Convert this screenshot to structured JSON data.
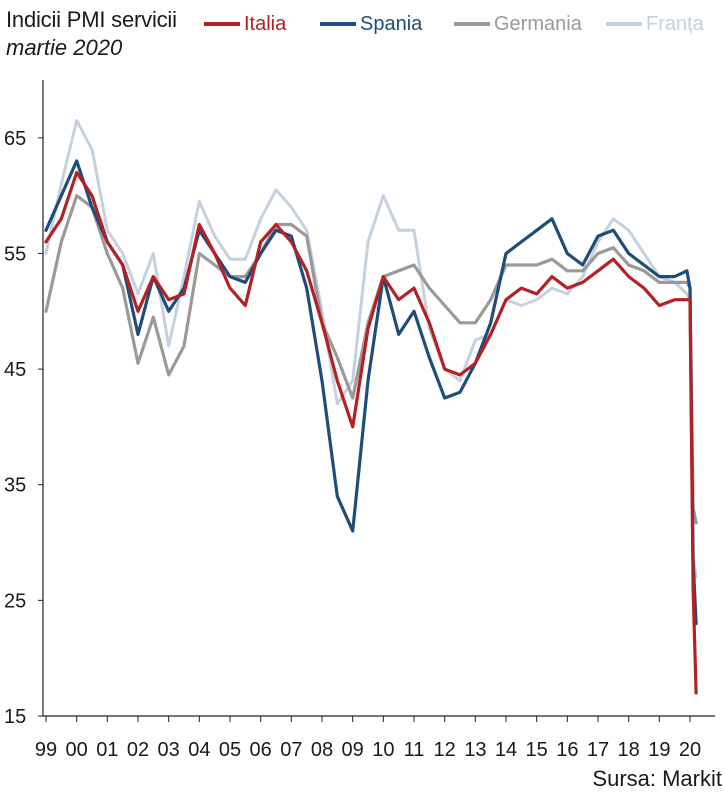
{
  "chart_data": {
    "type": "line",
    "title": "Indicii PMI servicii",
    "subtitle": "martie 2020",
    "source": "Sursa: Markit",
    "xlabel": "",
    "ylabel": "",
    "x_tick_labels": [
      "99",
      "00",
      "01",
      "02",
      "03",
      "04",
      "05",
      "06",
      "07",
      "08",
      "09",
      "10",
      "11",
      "12",
      "13",
      "14",
      "15",
      "16",
      "17",
      "18",
      "19",
      "20"
    ],
    "y_ticks": [
      15,
      25,
      35,
      45,
      55,
      65
    ],
    "y_tick_labels": [
      "15",
      "25",
      "35",
      "45",
      "55",
      "65"
    ],
    "xlim": [
      1999,
      2020.5
    ],
    "ylim": [
      15,
      70
    ],
    "grid": false,
    "legend_position": "top",
    "x": [
      1999.0,
      1999.5,
      2000.0,
      2000.5,
      2001.0,
      2001.5,
      2002.0,
      2002.5,
      2003.0,
      2003.5,
      2004.0,
      2004.5,
      2005.0,
      2005.5,
      2006.0,
      2006.5,
      2007.0,
      2007.5,
      2008.0,
      2008.5,
      2009.0,
      2009.5,
      2010.0,
      2010.5,
      2011.0,
      2011.5,
      2012.0,
      2012.5,
      2013.0,
      2013.5,
      2014.0,
      2014.5,
      2015.0,
      2015.5,
      2016.0,
      2016.5,
      2017.0,
      2017.5,
      2018.0,
      2018.5,
      2019.0,
      2019.5,
      2019.9,
      2020.0,
      2020.1,
      2020.2
    ],
    "series": [
      {
        "name": "Italia",
        "color": "#b32125",
        "values": [
          56.0,
          58.0,
          62.0,
          60.0,
          56.0,
          54.0,
          50.0,
          53.0,
          51.0,
          51.5,
          57.5,
          55.0,
          52.0,
          50.5,
          56.0,
          57.5,
          56.0,
          53.5,
          49.0,
          44.0,
          40.0,
          48.5,
          53.0,
          51.0,
          52.0,
          49.0,
          45.0,
          44.5,
          45.5,
          48.0,
          51.0,
          52.0,
          51.5,
          53.0,
          52.0,
          52.5,
          53.5,
          54.5,
          53.0,
          52.0,
          50.5,
          51.0,
          51.0,
          51.0,
          26.0,
          17.0
        ]
      },
      {
        "name": "Spania",
        "color": "#1f4d7a",
        "values": [
          57.0,
          60.0,
          63.0,
          59.0,
          56.0,
          54.0,
          48.0,
          53.0,
          50.0,
          52.0,
          57.0,
          55.0,
          53.0,
          52.5,
          55.0,
          57.0,
          56.5,
          52.0,
          44.0,
          34.0,
          31.0,
          44.0,
          53.0,
          48.0,
          50.0,
          46.0,
          42.5,
          43.0,
          45.5,
          49.0,
          55.0,
          56.0,
          57.0,
          58.0,
          55.0,
          54.0,
          56.5,
          57.0,
          55.0,
          54.0,
          53.0,
          53.0,
          53.5,
          52.0,
          28.5,
          23.0
        ]
      },
      {
        "name": "Germania",
        "color": "#9a9a9a",
        "values": [
          50.0,
          56.0,
          60.0,
          59.0,
          55.0,
          52.0,
          45.5,
          49.5,
          44.5,
          47.0,
          55.0,
          54.0,
          53.0,
          53.0,
          55.0,
          57.5,
          57.5,
          56.5,
          49.0,
          46.0,
          42.5,
          49.0,
          53.0,
          53.5,
          54.0,
          52.0,
          50.5,
          49.0,
          49.0,
          51.0,
          54.0,
          54.0,
          54.0,
          54.5,
          53.5,
          53.5,
          55.0,
          55.5,
          54.0,
          53.5,
          52.5,
          52.5,
          52.5,
          52.0,
          33.0,
          31.7
        ]
      },
      {
        "name": "Franța",
        "color": "#c5d1df",
        "values": [
          55.0,
          61.0,
          66.5,
          64.0,
          57.0,
          55.0,
          51.5,
          55.0,
          47.0,
          53.0,
          59.5,
          56.5,
          54.5,
          54.5,
          58.0,
          60.5,
          59.0,
          57.0,
          50.0,
          42.0,
          44.0,
          56.0,
          60.0,
          57.0,
          57.0,
          48.5,
          45.0,
          44.0,
          47.5,
          48.0,
          51.0,
          50.5,
          51.0,
          52.0,
          51.5,
          53.0,
          56.0,
          58.0,
          57.0,
          55.0,
          53.0,
          52.5,
          51.5,
          51.0,
          29.0,
          27.0
        ]
      }
    ]
  }
}
